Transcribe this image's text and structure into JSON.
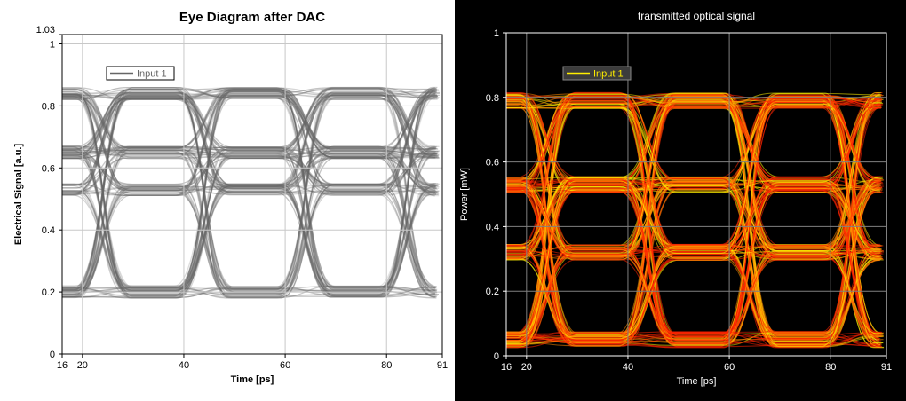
{
  "chart_data": [
    {
      "type": "line",
      "title": "Eye Diagram after DAC",
      "xlabel": "Time [ps]",
      "ylabel": "Electrical Signal [a.u.]",
      "xlim": [
        16,
        91
      ],
      "ylim": [
        0,
        1.03
      ],
      "x_ticks": [
        "16",
        "20",
        "40",
        "60",
        "80",
        "91"
      ],
      "y_ticks": [
        "0",
        "0.2",
        "0.4",
        "0.6",
        "0.8",
        "1",
        "1.03"
      ],
      "grid": true,
      "legend": "top-left",
      "series": [
        {
          "name": "Input 1",
          "values": [
            0.2,
            0.53,
            0.65,
            0.84
          ]
        }
      ],
      "levels": [
        0.2,
        0.53,
        0.65,
        0.84
      ],
      "crossing_times": [
        24,
        44,
        64,
        84
      ],
      "colors": {
        "trace": "#666666",
        "background": "#ffffff",
        "axes": "#000000",
        "grid": "#c8c8c8"
      }
    },
    {
      "type": "line",
      "title": "transmitted optical signal",
      "xlabel": "Time [ps]",
      "ylabel": "Power [mW]",
      "xlim": [
        16,
        91
      ],
      "ylim": [
        0,
        1
      ],
      "x_ticks": [
        "16",
        "20",
        "40",
        "60",
        "80",
        "91"
      ],
      "y_ticks": [
        "0",
        "0.2",
        "0.4",
        "0.6",
        "0.8",
        "1"
      ],
      "grid": true,
      "legend": "top-left",
      "series": [
        {
          "name": "Input 1",
          "values": [
            0.05,
            0.32,
            0.53,
            0.79
          ]
        }
      ],
      "levels": [
        0.05,
        0.32,
        0.53,
        0.79
      ],
      "crossing_times": [
        24,
        44,
        64,
        84
      ],
      "colors": {
        "trace_low": "#ff2200",
        "trace_high": "#ffee00",
        "background": "#000000",
        "axes": "#ffffff",
        "grid": "#808080"
      }
    }
  ]
}
